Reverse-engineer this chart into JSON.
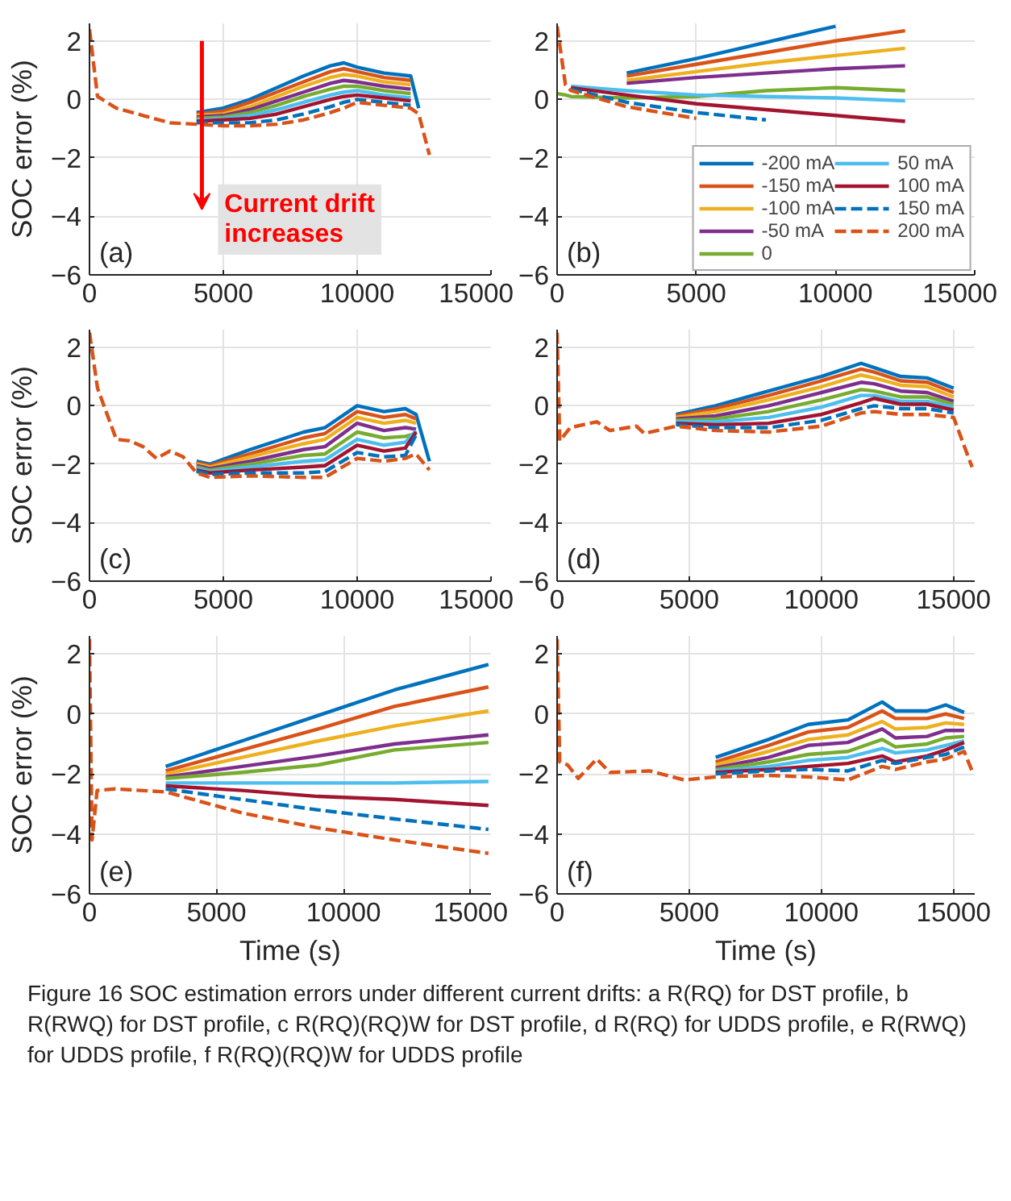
{
  "chart_data": [
    {
      "type": "line",
      "ylabel": "SOC error (%)",
      "xlim": [
        0,
        15000
      ],
      "ylim": [
        -6,
        2.6
      ],
      "xticks": [
        0,
        5000,
        10000,
        15000
      ],
      "yticks": [
        -6,
        -4,
        -2,
        0,
        2
      ],
      "grid": true,
      "annotations": [
        "(a)",
        "Current drift\nincreases"
      ],
      "x": [
        0,
        300,
        1000,
        2000,
        3000,
        4000,
        5000,
        6000,
        7000,
        8000,
        9000,
        9500,
        10000,
        11000,
        12000,
        12300,
        12700
      ],
      "series": [
        {
          "color": "#0072bd",
          "values": [
            null,
            null,
            null,
            null,
            null,
            -0.45,
            -0.3,
            0,
            0.4,
            0.8,
            1.15,
            1.25,
            1.1,
            0.9,
            0.8,
            -0.3,
            null
          ]
        },
        {
          "color": "#d95319",
          "values": [
            null,
            null,
            null,
            null,
            null,
            -0.5,
            -0.4,
            -0.1,
            0.25,
            0.6,
            0.95,
            1.05,
            0.95,
            0.75,
            0.65,
            null,
            null
          ]
        },
        {
          "color": "#edb120",
          "values": [
            null,
            null,
            null,
            null,
            null,
            -0.55,
            -0.5,
            -0.25,
            0.1,
            0.45,
            0.75,
            0.85,
            0.8,
            0.6,
            0.5,
            null,
            null
          ]
        },
        {
          "color": "#7e2f8e",
          "values": [
            null,
            null,
            null,
            null,
            null,
            -0.6,
            -0.55,
            -0.35,
            -0.05,
            0.25,
            0.55,
            0.65,
            0.6,
            0.45,
            0.35,
            null,
            null
          ]
        },
        {
          "color": "#77ac30",
          "values": [
            null,
            null,
            null,
            null,
            null,
            -0.65,
            -0.6,
            -0.45,
            -0.2,
            0.1,
            0.35,
            0.45,
            0.45,
            0.3,
            0.2,
            null,
            null
          ]
        },
        {
          "color": "#4dbeee",
          "values": [
            null,
            null,
            null,
            null,
            null,
            -0.7,
            -0.65,
            -0.55,
            -0.35,
            -0.1,
            0.15,
            0.25,
            0.3,
            0.15,
            0.05,
            null,
            null
          ]
        },
        {
          "color": "#a2142f",
          "values": [
            null,
            null,
            null,
            null,
            null,
            -0.75,
            -0.7,
            -0.65,
            -0.5,
            -0.25,
            0,
            0.1,
            0.15,
            0.05,
            -0.05,
            null,
            null
          ]
        },
        {
          "color": "#0072bd",
          "line_style": "dashed",
          "values": [
            null,
            null,
            null,
            null,
            null,
            -0.8,
            -0.8,
            -0.8,
            -0.7,
            -0.5,
            -0.25,
            -0.1,
            0,
            -0.1,
            -0.2,
            null,
            null
          ]
        },
        {
          "color": "#d95319",
          "line_style": "dashed",
          "values": [
            2.4,
            0.1,
            -0.3,
            -0.55,
            -0.8,
            -0.85,
            -0.9,
            -0.9,
            -0.85,
            -0.7,
            -0.45,
            -0.3,
            -0.1,
            -0.2,
            -0.3,
            -0.5,
            -1.9
          ]
        }
      ]
    },
    {
      "type": "line",
      "xlim": [
        0,
        15000
      ],
      "ylim": [
        -6,
        2.6
      ],
      "xticks": [
        0,
        5000,
        10000,
        15000
      ],
      "yticks": [
        -6,
        -4,
        -2,
        0,
        2
      ],
      "grid": true,
      "legend": "bottom right",
      "annotations": [
        "(b)"
      ],
      "x": [
        0,
        300,
        500,
        2500,
        5000,
        7500,
        10000,
        12500
      ],
      "series": [
        {
          "name": "-200 mA",
          "color": "#0072bd",
          "values": [
            null,
            null,
            null,
            0.9,
            1.4,
            1.95,
            2.5,
            null
          ]
        },
        {
          "name": "-150 mA",
          "color": "#d95319",
          "values": [
            null,
            null,
            null,
            0.8,
            1.2,
            1.6,
            2.0,
            2.35
          ]
        },
        {
          "name": "-100 mA",
          "color": "#edb120",
          "values": [
            null,
            null,
            null,
            0.65,
            0.95,
            1.25,
            1.5,
            1.75
          ]
        },
        {
          "name": "-50 mA",
          "color": "#7e2f8e",
          "values": [
            null,
            null,
            null,
            0.55,
            0.75,
            0.9,
            1.05,
            1.15
          ]
        },
        {
          "name": "0",
          "color": "#77ac30",
          "values": [
            0.2,
            0.15,
            0.1,
            0.05,
            0.1,
            0.3,
            0.4,
            0.3
          ]
        },
        {
          "name": "50 mA",
          "color": "#4dbeee",
          "values": [
            null,
            null,
            0.45,
            0.3,
            0.15,
            0.1,
            0.05,
            -0.05
          ]
        },
        {
          "name": "100 mA",
          "color": "#a2142f",
          "values": [
            null,
            null,
            0.4,
            0.15,
            -0.15,
            -0.35,
            -0.55,
            -0.75
          ]
        },
        {
          "name": "150 mA",
          "color": "#0072bd",
          "line_style": "dashed",
          "values": [
            null,
            null,
            0.35,
            -0.1,
            -0.45,
            -0.7,
            null,
            null
          ]
        },
        {
          "name": "200 mA",
          "color": "#d95319",
          "line_style": "dashed",
          "values": [
            2.5,
            0.5,
            0.3,
            -0.25,
            -0.65,
            null,
            null,
            null
          ]
        }
      ]
    },
    {
      "type": "line",
      "ylabel": "SOC error (%)",
      "xlim": [
        0,
        15000
      ],
      "ylim": [
        -6,
        2.6
      ],
      "xticks": [
        0,
        5000,
        10000,
        15000
      ],
      "yticks": [
        -6,
        -4,
        -2,
        0,
        2
      ],
      "grid": true,
      "annotations": [
        "(c)"
      ],
      "x": [
        0,
        300,
        1000,
        1500,
        2000,
        2500,
        3000,
        3500,
        4000,
        4500,
        6000,
        8000,
        8800,
        10000,
        11000,
        11800,
        12200,
        12700
      ],
      "series": [
        {
          "color": "#0072bd",
          "values": [
            null,
            null,
            null,
            null,
            null,
            null,
            null,
            null,
            -1.9,
            -2.0,
            -1.5,
            -0.9,
            -0.75,
            0.0,
            -0.2,
            -0.1,
            -0.3,
            -1.9
          ]
        },
        {
          "color": "#d95319",
          "values": [
            null,
            null,
            null,
            null,
            null,
            null,
            null,
            null,
            -1.95,
            -2.05,
            -1.65,
            -1.1,
            -0.95,
            -0.2,
            -0.4,
            -0.3,
            -0.45,
            null
          ]
        },
        {
          "color": "#edb120",
          "values": [
            null,
            null,
            null,
            null,
            null,
            null,
            null,
            null,
            -2.0,
            -2.1,
            -1.75,
            -1.3,
            -1.15,
            -0.4,
            -0.6,
            -0.5,
            -0.6,
            null
          ]
        },
        {
          "color": "#7e2f8e",
          "values": [
            null,
            null,
            null,
            null,
            null,
            null,
            null,
            null,
            -2.05,
            -2.15,
            -1.9,
            -1.5,
            -1.4,
            -0.6,
            -0.85,
            -0.75,
            -0.8,
            null
          ]
        },
        {
          "color": "#77ac30",
          "values": [
            null,
            null,
            null,
            null,
            null,
            null,
            null,
            null,
            -2.1,
            -2.2,
            -2.0,
            -1.7,
            -1.65,
            -0.9,
            -1.1,
            -1.05,
            -0.95,
            null
          ]
        },
        {
          "color": "#4dbeee",
          "values": [
            null,
            null,
            null,
            null,
            null,
            null,
            null,
            null,
            -2.15,
            -2.25,
            -2.1,
            -1.9,
            -1.85,
            -1.15,
            -1.35,
            -1.25,
            -0.85,
            null
          ]
        },
        {
          "color": "#a2142f",
          "values": [
            null,
            null,
            null,
            null,
            null,
            null,
            null,
            null,
            -2.2,
            -2.3,
            -2.2,
            -2.1,
            -2.05,
            -1.35,
            -1.55,
            -1.45,
            -0.9,
            null
          ]
        },
        {
          "color": "#0072bd",
          "line_style": "dashed",
          "values": [
            null,
            null,
            null,
            null,
            null,
            null,
            null,
            null,
            -2.25,
            -2.35,
            -2.3,
            -2.3,
            -2.25,
            -1.6,
            -1.75,
            -1.7,
            -1.0,
            null
          ]
        },
        {
          "color": "#d95319",
          "line_style": "dashed",
          "values": [
            2.5,
            0.6,
            -1.15,
            -1.2,
            -1.4,
            -1.8,
            -1.55,
            -1.75,
            -2.3,
            -2.45,
            -2.4,
            -2.45,
            -2.45,
            -1.8,
            -1.9,
            -1.8,
            -1.65,
            -2.2
          ]
        }
      ]
    },
    {
      "type": "line",
      "xlim": [
        0,
        15800
      ],
      "ylim": [
        -6,
        2.6
      ],
      "xticks": [
        0,
        5000,
        10000,
        15000
      ],
      "yticks": [
        -6,
        -4,
        -2,
        0,
        2
      ],
      "grid": true,
      "annotations": [
        "(d)"
      ],
      "x": [
        0,
        100,
        500,
        1500,
        2000,
        3000,
        3300,
        4500,
        6000,
        8000,
        10000,
        11500,
        12000,
        13000,
        14000,
        15000,
        15700
      ],
      "series": [
        {
          "color": "#0072bd",
          "values": [
            null,
            null,
            null,
            null,
            null,
            null,
            null,
            -0.3,
            0.0,
            0.5,
            1.0,
            1.45,
            1.3,
            1.0,
            0.95,
            0.6,
            null
          ]
        },
        {
          "color": "#d95319",
          "values": [
            null,
            null,
            null,
            null,
            null,
            null,
            null,
            -0.35,
            -0.1,
            0.35,
            0.85,
            1.25,
            1.15,
            0.85,
            0.8,
            0.45,
            null
          ]
        },
        {
          "color": "#edb120",
          "values": [
            null,
            null,
            null,
            null,
            null,
            null,
            null,
            -0.4,
            -0.2,
            0.2,
            0.65,
            1.05,
            0.95,
            0.7,
            0.65,
            0.3,
            null
          ]
        },
        {
          "color": "#7e2f8e",
          "values": [
            null,
            null,
            null,
            null,
            null,
            null,
            null,
            -0.45,
            -0.35,
            0.0,
            0.45,
            0.8,
            0.75,
            0.5,
            0.45,
            0.15,
            null
          ]
        },
        {
          "color": "#77ac30",
          "values": [
            null,
            null,
            null,
            null,
            null,
            null,
            null,
            -0.5,
            -0.45,
            -0.2,
            0.2,
            0.55,
            0.5,
            0.3,
            0.3,
            0.05,
            null
          ]
        },
        {
          "color": "#4dbeee",
          "values": [
            null,
            null,
            null,
            null,
            null,
            null,
            null,
            -0.55,
            -0.55,
            -0.4,
            -0.05,
            0.35,
            0.35,
            0.15,
            0.15,
            -0.05,
            null
          ]
        },
        {
          "color": "#a2142f",
          "values": [
            null,
            null,
            null,
            null,
            null,
            null,
            null,
            -0.6,
            -0.65,
            -0.6,
            -0.3,
            0.1,
            0.25,
            0.05,
            0.05,
            -0.15,
            null
          ]
        },
        {
          "color": "#0072bd",
          "line_style": "dashed",
          "values": [
            null,
            null,
            null,
            null,
            null,
            null,
            null,
            -0.65,
            -0.75,
            -0.75,
            -0.5,
            -0.1,
            0.0,
            -0.1,
            -0.1,
            -0.25,
            null
          ]
        },
        {
          "color": "#d95319",
          "line_style": "dashed",
          "values": [
            2.5,
            -1.2,
            -0.75,
            -0.55,
            -0.85,
            -0.7,
            -0.95,
            -0.7,
            -0.85,
            -0.9,
            -0.7,
            -0.25,
            -0.2,
            -0.3,
            -0.3,
            -0.4,
            -2.1
          ]
        }
      ]
    },
    {
      "type": "line",
      "xlabel": "Time (s)",
      "ylabel": "SOC error (%)",
      "xlim": [
        0,
        15800
      ],
      "ylim": [
        -6,
        2.6
      ],
      "xticks": [
        0,
        5000,
        10000,
        15000
      ],
      "yticks": [
        -6,
        -4,
        -2,
        0,
        2
      ],
      "grid": true,
      "annotations": [
        "(e)"
      ],
      "x": [
        0,
        100,
        300,
        1000,
        3000,
        6000,
        9000,
        12000,
        15700
      ],
      "series": [
        {
          "color": "#0072bd",
          "values": [
            null,
            null,
            null,
            null,
            -1.75,
            -0.9,
            -0.05,
            0.8,
            1.65
          ]
        },
        {
          "color": "#d95319",
          "values": [
            null,
            null,
            null,
            null,
            -1.9,
            -1.2,
            -0.5,
            0.25,
            0.9
          ]
        },
        {
          "color": "#edb120",
          "values": [
            null,
            null,
            null,
            null,
            -2.0,
            -1.45,
            -0.9,
            -0.4,
            0.1
          ]
        },
        {
          "color": "#7e2f8e",
          "values": [
            null,
            null,
            null,
            null,
            -2.1,
            -1.75,
            -1.4,
            -1.0,
            -0.7
          ]
        },
        {
          "color": "#77ac30",
          "values": [
            null,
            null,
            null,
            null,
            -2.15,
            -1.95,
            -1.7,
            -1.2,
            -0.95
          ]
        },
        {
          "color": "#4dbeee",
          "values": [
            null,
            null,
            null,
            null,
            -2.3,
            -2.3,
            -2.3,
            -2.3,
            -2.25
          ]
        },
        {
          "color": "#a2142f",
          "values": [
            null,
            null,
            null,
            null,
            -2.4,
            -2.55,
            -2.75,
            -2.85,
            -3.05
          ]
        },
        {
          "color": "#0072bd",
          "line_style": "dashed",
          "values": [
            null,
            null,
            null,
            null,
            -2.5,
            -2.85,
            -3.2,
            -3.5,
            -3.85
          ]
        },
        {
          "color": "#d95319",
          "line_style": "dashed",
          "values": [
            2.5,
            -4.2,
            -2.55,
            -2.5,
            -2.6,
            -3.3,
            -3.8,
            -4.2,
            -4.65
          ]
        }
      ]
    },
    {
      "type": "line",
      "xlabel": "Time (s)",
      "xlim": [
        0,
        15800
      ],
      "ylim": [
        -6,
        2.6
      ],
      "xticks": [
        0,
        5000,
        10000,
        15000
      ],
      "yticks": [
        -6,
        -4,
        -2,
        0,
        2
      ],
      "grid": true,
      "annotations": [
        "(f)",
        "Figure 16  SOC estimation errors under different current drifts: a R(RQ) for DST profile, b R(RWQ) for DST profile, c R(RQ)(RQ)W for DST profile, d R(RQ) for UDDS profile, e R(RWQ) for UDDS profile, f R(RQ)(RQ)W for UDDS profile"
      ],
      "x": [
        0,
        100,
        400,
        800,
        1500,
        2000,
        3500,
        4800,
        6000,
        8000,
        9500,
        11000,
        12300,
        12800,
        14000,
        14700,
        15400,
        15700
      ],
      "series": [
        {
          "color": "#0072bd",
          "values": [
            null,
            null,
            null,
            null,
            null,
            null,
            null,
            null,
            -1.45,
            -0.85,
            -0.35,
            -0.2,
            0.4,
            0.1,
            0.1,
            0.3,
            0.05,
            null
          ]
        },
        {
          "color": "#d95319",
          "values": [
            null,
            null,
            null,
            null,
            null,
            null,
            null,
            null,
            -1.6,
            -1.05,
            -0.6,
            -0.45,
            0.1,
            -0.15,
            -0.15,
            0.0,
            -0.15,
            null
          ]
        },
        {
          "color": "#edb120",
          "values": [
            null,
            null,
            null,
            null,
            null,
            null,
            null,
            null,
            -1.7,
            -1.25,
            -0.85,
            -0.7,
            -0.25,
            -0.5,
            -0.45,
            -0.3,
            -0.35,
            null
          ]
        },
        {
          "color": "#7e2f8e",
          "values": [
            null,
            null,
            null,
            null,
            null,
            null,
            null,
            null,
            -1.8,
            -1.45,
            -1.05,
            -0.95,
            -0.5,
            -0.8,
            -0.75,
            -0.55,
            -0.55,
            null
          ]
        },
        {
          "color": "#77ac30",
          "values": [
            null,
            null,
            null,
            null,
            null,
            null,
            null,
            null,
            -1.85,
            -1.6,
            -1.35,
            -1.25,
            -0.85,
            -1.1,
            -1.0,
            -0.8,
            -0.75,
            null
          ]
        },
        {
          "color": "#4dbeee",
          "values": [
            null,
            null,
            null,
            null,
            null,
            null,
            null,
            null,
            -1.9,
            -1.75,
            -1.55,
            -1.45,
            -1.15,
            -1.3,
            -1.2,
            -1.05,
            -0.9,
            null
          ]
        },
        {
          "color": "#a2142f",
          "values": [
            null,
            null,
            null,
            null,
            null,
            null,
            null,
            null,
            -1.95,
            -1.85,
            -1.75,
            -1.65,
            -1.4,
            -1.6,
            -1.4,
            -1.2,
            -0.95,
            null
          ]
        },
        {
          "color": "#0072bd",
          "line_style": "dashed",
          "values": [
            null,
            null,
            null,
            null,
            null,
            null,
            null,
            null,
            -2.0,
            -1.9,
            -1.85,
            -1.9,
            -1.55,
            -1.65,
            -1.45,
            -1.35,
            -1.1,
            null
          ]
        },
        {
          "color": "#d95319",
          "line_style": "dashed",
          "values": [
            2.5,
            -1.6,
            -1.7,
            -2.15,
            -1.5,
            -1.95,
            -1.9,
            -2.2,
            -2.1,
            -2.05,
            -2.1,
            -2.2,
            -1.75,
            -1.85,
            -1.6,
            -1.5,
            -1.25,
            -1.9
          ]
        }
      ]
    }
  ]
}
